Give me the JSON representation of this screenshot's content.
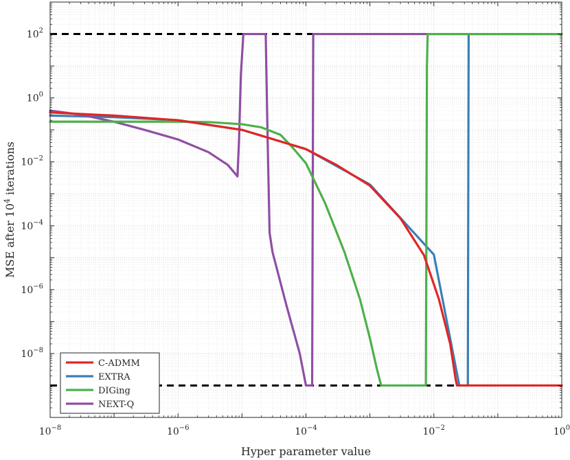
{
  "chart_data": {
    "type": "line",
    "title": "",
    "xlabel": "Hyper parameter value",
    "ylabel_main": "MSE after 10",
    "ylabel_exp": "4",
    "ylabel_tail": " iterations",
    "xscale": "log",
    "yscale": "log",
    "xlim": [
      1e-08,
      1
    ],
    "ylim": [
      1e-10,
      1000
    ],
    "grid": true,
    "minor_grid": true,
    "legend_position": "bottom-left",
    "x_ticks": [
      {
        "value": 1e-08,
        "base": "10",
        "exp": "−8"
      },
      {
        "value": 1e-06,
        "base": "10",
        "exp": "−6"
      },
      {
        "value": 0.0001,
        "base": "10",
        "exp": "−4"
      },
      {
        "value": 0.01,
        "base": "10",
        "exp": "−2"
      },
      {
        "value": 1,
        "base": "10",
        "exp": "0"
      }
    ],
    "y_ticks": [
      {
        "value": 1e-08,
        "base": "10",
        "exp": "−8"
      },
      {
        "value": 1e-06,
        "base": "10",
        "exp": "−6"
      },
      {
        "value": 0.0001,
        "base": "10",
        "exp": "−4"
      },
      {
        "value": 0.01,
        "base": "10",
        "exp": "−2"
      },
      {
        "value": 1,
        "base": "10",
        "exp": "0"
      },
      {
        "value": 100,
        "base": "10",
        "exp": "2"
      }
    ],
    "reference_lines": [
      {
        "y": 100,
        "color": "#000000",
        "style": "dashed"
      },
      {
        "y": 1e-09,
        "color": "#000000",
        "style": "dashed"
      }
    ],
    "series": [
      {
        "name": "EXTRA",
        "color": "#3a7fb5",
        "x": [
          1e-08,
          1e-07,
          1e-06,
          1e-05,
          0.0001,
          0.001,
          0.01,
          0.025,
          0.032,
          0.034,
          0.035,
          0.1,
          1
        ],
        "y": [
          0.28,
          0.25,
          0.2,
          0.1,
          0.025,
          0.00195,
          1.25e-05,
          1e-09,
          1e-09,
          1e-09,
          100,
          100,
          100
        ]
      },
      {
        "name": "NEXT-Q",
        "color": "#8f4ea3",
        "x": [
          1e-08,
          3e-08,
          1e-07,
          3e-07,
          1e-06,
          3e-06,
          6e-06,
          8.5e-06,
          9e-06,
          9.6e-06,
          1.05e-05,
          1.5e-05,
          2.35e-05,
          2.5e-05,
          2.7e-05,
          3e-05,
          5e-05,
          8e-05,
          0.0001,
          0.000112,
          0.000115,
          0.000125,
          0.00013,
          0.001,
          0.01,
          0.1,
          1
        ],
        "y": [
          0.4,
          0.3,
          0.18,
          0.1,
          0.05,
          0.02,
          0.008,
          0.0035,
          0.05,
          5,
          100,
          100,
          100,
          0.1,
          6e-05,
          1.5e-05,
          3e-07,
          1e-08,
          1e-09,
          1e-09,
          1e-09,
          1e-09,
          100,
          100,
          100,
          100,
          100
        ]
      },
      {
        "name": "DIGing",
        "color": "#4db04a",
        "x": [
          1e-08,
          1e-07,
          1e-06,
          3e-06,
          1e-05,
          2e-05,
          4e-05,
          6e-05,
          0.0001,
          0.0002,
          0.0004,
          0.0007,
          0.001,
          0.0013,
          0.0015,
          0.0075,
          0.0078,
          0.008,
          0.1,
          1
        ],
        "y": [
          0.18,
          0.18,
          0.18,
          0.175,
          0.15,
          0.12,
          0.07,
          0.03,
          0.009,
          0.0005,
          1.5e-05,
          5e-07,
          3e-08,
          3e-09,
          1e-09,
          1e-09,
          10,
          100,
          100,
          100
        ]
      },
      {
        "name": "C-ADMM",
        "color": "#e22524",
        "x": [
          1e-08,
          1e-07,
          1e-06,
          1e-05,
          0.0001,
          0.0003,
          0.001,
          0.003,
          0.007,
          0.012,
          0.018,
          0.022,
          0.023,
          0.1,
          1
        ],
        "y": [
          0.35,
          0.28,
          0.2,
          0.1,
          0.025,
          0.008,
          0.0018,
          0.00017,
          1.2e-05,
          5e-07,
          2e-08,
          1.5e-09,
          1e-09,
          1e-09,
          1e-09
        ]
      }
    ],
    "legend": [
      "C-ADMM",
      "EXTRA",
      "DIGing",
      "NEXT-Q"
    ],
    "legend_colors": [
      "#e22524",
      "#3a7fb5",
      "#4db04a",
      "#8f4ea3"
    ]
  }
}
